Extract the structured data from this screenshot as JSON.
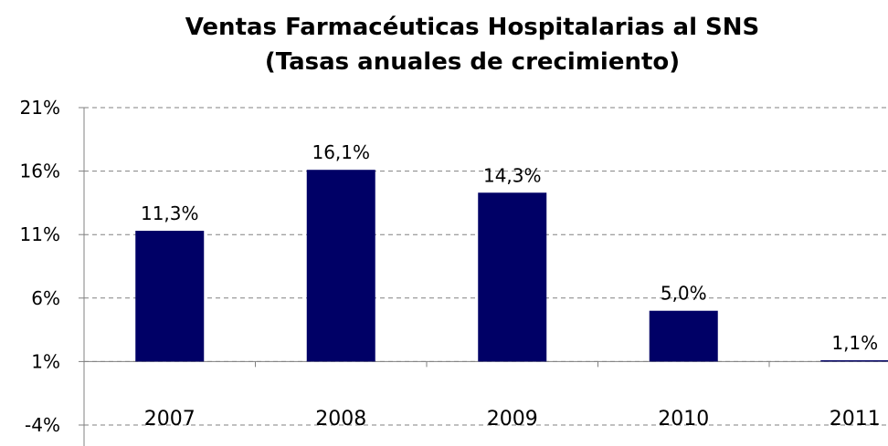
{
  "chart_data": {
    "type": "bar",
    "title": "Ventas Farmacéuticas Hospitalarias al SNS",
    "subtitle": "(Tasas anuales de crecimiento)",
    "categories": [
      "2007",
      "2008",
      "2009",
      "2010",
      "2011"
    ],
    "values": [
      11.3,
      16.1,
      14.3,
      5.0,
      1.1
    ],
    "data_labels": [
      "11,3%",
      "16,1%",
      "14,3%",
      "5,0%",
      "1,1%"
    ],
    "yticks": [
      21,
      16,
      11,
      6,
      1,
      -4
    ],
    "ytick_labels": [
      "21%",
      "16%",
      "11%",
      "6%",
      "1%",
      "-4%"
    ],
    "ylim": [
      -5,
      21
    ],
    "xlabel": "",
    "ylabel": "",
    "grid": true,
    "bar_color": "#000066",
    "grid_color": "#808080"
  }
}
